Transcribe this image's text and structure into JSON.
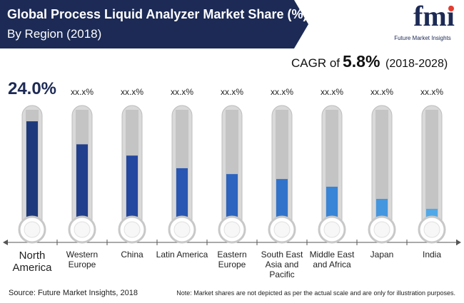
{
  "chart_data": {
    "type": "thermometer",
    "title": "Global Process Liquid Analyzer Market Share (%)",
    "subtitle": "By Region (2018)",
    "cagr": {
      "prefix": "CAGR of",
      "value": "5.8%",
      "period": "(2018-2028)"
    },
    "logo": {
      "mark": "fmi",
      "name": "Future Market Insights"
    },
    "categories": [
      "North America",
      "Western Europe",
      "China",
      "Latin America",
      "Eastern Europe",
      "South East Asia and Pacific",
      "Middle East and Africa",
      "Japan",
      "India"
    ],
    "values": [
      24.0,
      18.9,
      16.4,
      13.6,
      12.3,
      11.2,
      9.5,
      6.8,
      4.6
    ],
    "value_labels": [
      "24.0%",
      "xx.x%",
      "xx.x%",
      "xx.x%",
      "xx.x%",
      "xx.x%",
      "xx.x%",
      "xx.x%",
      "xx.x%"
    ],
    "colors": [
      "#1e3a7c",
      "#213f8c",
      "#2447a0",
      "#2856b2",
      "#2c64bf",
      "#3173cb",
      "#3884d6",
      "#4496df",
      "#50a8e8"
    ],
    "ylim": [
      0,
      27.5
    ],
    "source": "Source: Future Market Insights, 2018",
    "note": "Note: Market shares are not depicted as per the actual scale and are only for illustration purposes."
  }
}
